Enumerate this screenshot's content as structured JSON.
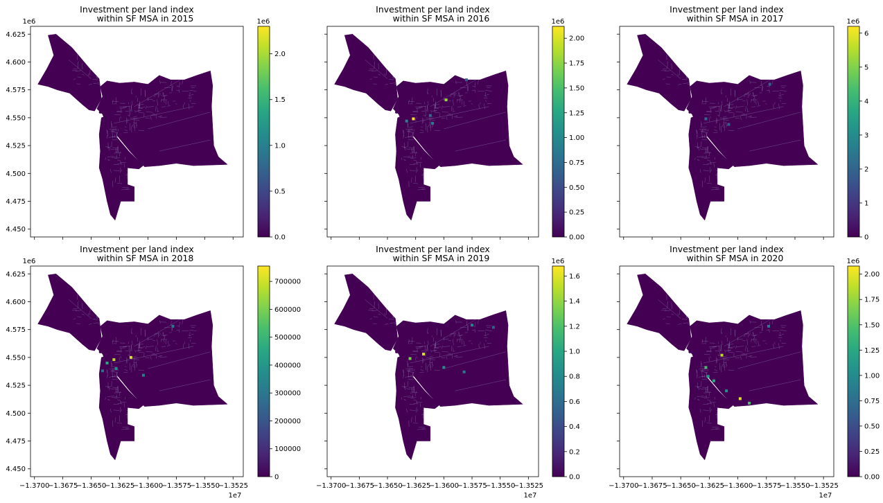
{
  "figure": {
    "colormap": "viridis",
    "region_fill_color": "#440154",
    "boundary_color": "#8f7fb0"
  },
  "chart_data": [
    {
      "type": "choropleth",
      "title_line1": "Investment per land index",
      "title_line2": "within SF MSA in 2015",
      "x_ticks": [],
      "x_exponent": "",
      "y_ticks": [
        "4.450",
        "4.475",
        "4.500",
        "4.525",
        "4.550",
        "4.575",
        "4.600",
        "4.625"
      ],
      "y_exponent": "1e6",
      "colorbar": {
        "min": 0,
        "max": 2300000,
        "ticks": [
          "0.0",
          "0.5",
          "1.0",
          "1.5",
          "2.0"
        ],
        "tick_values": [
          0,
          0.5,
          1.0,
          1.5,
          2.0
        ],
        "vmax_scaled": 2.3,
        "exponent": "1e6"
      },
      "hotspots": []
    },
    {
      "type": "choropleth",
      "title_line1": "Investment per land index",
      "title_line2": "within SF MSA in 2016",
      "x_ticks": [],
      "x_exponent": "",
      "y_ticks": [],
      "y_exponent": "",
      "colorbar": {
        "min": 0,
        "max": 2120000,
        "ticks": [
          "0.00",
          "0.25",
          "0.50",
          "0.75",
          "1.00",
          "1.25",
          "1.50",
          "1.75",
          "2.00"
        ],
        "tick_values": [
          0,
          0.25,
          0.5,
          0.75,
          1.0,
          1.25,
          1.5,
          1.75,
          2.0
        ],
        "vmax_scaled": 2.12,
        "exponent": "1e6"
      },
      "hotspots": [
        {
          "x": -13627000,
          "y": 4549000,
          "v": 1.0
        },
        {
          "x": -13633000,
          "y": 4547000,
          "v": 0.45
        },
        {
          "x": -13610000,
          "y": 4545000,
          "v": 0.4
        },
        {
          "x": -13598000,
          "y": 4566000,
          "v": 0.85
        },
        {
          "x": -13580000,
          "y": 4584000,
          "v": 0.3
        },
        {
          "x": -13612000,
          "y": 4552000,
          "v": 0.35
        }
      ]
    },
    {
      "type": "choropleth",
      "title_line1": "Investment per land index",
      "title_line2": "within SF MSA in 2017",
      "x_ticks": [],
      "x_exponent": "",
      "y_ticks": [],
      "y_exponent": "",
      "colorbar": {
        "min": 0,
        "max": 6200000,
        "ticks": [
          "0",
          "1",
          "2",
          "3",
          "4",
          "5",
          "6"
        ],
        "tick_values": [
          0,
          1,
          2,
          3,
          4,
          5,
          6
        ],
        "vmax_scaled": 6.2,
        "exponent": "1e6"
      },
      "hotspots": [
        {
          "x": -13628000,
          "y": 4549000,
          "v": 0.35
        },
        {
          "x": -13608000,
          "y": 4544000,
          "v": 0.3
        },
        {
          "x": -13572000,
          "y": 4580000,
          "v": 0.3
        }
      ]
    },
    {
      "type": "choropleth",
      "title_line1": "Investment per land index",
      "title_line2": "within SF MSA in 2018",
      "x_ticks": [
        "−1.3700",
        "−1.3675",
        "−1.3650",
        "−1.3625",
        "−1.3600",
        "−1.3575",
        "−1.3550",
        "−1.3525"
      ],
      "x_exponent": "1e7",
      "y_ticks": [
        "4.450",
        "4.475",
        "4.500",
        "4.525",
        "4.550",
        "4.575",
        "4.600",
        "4.625"
      ],
      "y_exponent": "1e6",
      "colorbar": {
        "min": 0,
        "max": 755000,
        "ticks": [
          "0",
          "100000",
          "200000",
          "300000",
          "400000",
          "500000",
          "600000",
          "700000"
        ],
        "tick_values": [
          0,
          100000,
          200000,
          300000,
          400000,
          500000,
          600000,
          700000
        ],
        "vmax_scaled": 755000,
        "exponent": ""
      },
      "hotspots": [
        {
          "x": -13630000,
          "y": 4548000,
          "v": 0.9
        },
        {
          "x": -13636000,
          "y": 4545000,
          "v": 0.6
        },
        {
          "x": -13628000,
          "y": 4540000,
          "v": 0.5
        },
        {
          "x": -13615000,
          "y": 4550000,
          "v": 0.95
        },
        {
          "x": -13604000,
          "y": 4534000,
          "v": 0.45
        },
        {
          "x": -13578000,
          "y": 4578000,
          "v": 0.4
        },
        {
          "x": -13640000,
          "y": 4538000,
          "v": 0.35
        }
      ]
    },
    {
      "type": "choropleth",
      "title_line1": "Investment per land index",
      "title_line2": "within SF MSA in 2019",
      "x_ticks": [
        "−1.3700",
        "−1.3675",
        "−1.3650",
        "−1.3625",
        "−1.3600",
        "−1.3575",
        "−1.3550",
        "−1.3525"
      ],
      "x_exponent": "1e7",
      "y_ticks": [],
      "y_exponent": "",
      "colorbar": {
        "min": 0,
        "max": 1680000,
        "ticks": [
          "0.0",
          "0.2",
          "0.4",
          "0.6",
          "0.8",
          "1.0",
          "1.2",
          "1.4",
          "1.6"
        ],
        "tick_values": [
          0,
          0.2,
          0.4,
          0.6,
          0.8,
          1.0,
          1.2,
          1.4,
          1.6
        ],
        "vmax_scaled": 1.68,
        "exponent": "1e6"
      },
      "hotspots": [
        {
          "x": -13630000,
          "y": 4549000,
          "v": 0.8
        },
        {
          "x": -13618000,
          "y": 4553000,
          "v": 0.95
        },
        {
          "x": -13600000,
          "y": 4541000,
          "v": 0.5
        },
        {
          "x": -13582000,
          "y": 4537000,
          "v": 0.4
        },
        {
          "x": -13575000,
          "y": 4579000,
          "v": 0.45
        },
        {
          "x": -13556000,
          "y": 4577000,
          "v": 0.3
        }
      ]
    },
    {
      "type": "choropleth",
      "title_line1": "Investment per land index",
      "title_line2": "within SF MSA in 2020",
      "x_ticks": [
        "−1.3700",
        "−1.3675",
        "−1.3650",
        "−1.3625",
        "−1.3600",
        "−1.3575",
        "−1.3550",
        "−1.3525"
      ],
      "x_exponent": "1e7",
      "y_ticks": [],
      "y_exponent": "",
      "colorbar": {
        "min": 0,
        "max": 2080000,
        "ticks": [
          "0.00",
          "0.25",
          "0.50",
          "0.75",
          "1.00",
          "1.25",
          "1.50",
          "1.75",
          "2.00"
        ],
        "tick_values": [
          0,
          0.25,
          0.5,
          0.75,
          1.0,
          1.25,
          1.5,
          1.75,
          2.0
        ],
        "vmax_scaled": 2.08,
        "exponent": "1e6"
      },
      "hotspots": [
        {
          "x": -13614000,
          "y": 4552000,
          "v": 0.9
        },
        {
          "x": -13628000,
          "y": 4541000,
          "v": 0.7
        },
        {
          "x": -13621000,
          "y": 4529000,
          "v": 0.6
        },
        {
          "x": -13610000,
          "y": 4520000,
          "v": 0.5
        },
        {
          "x": -13598000,
          "y": 4513000,
          "v": 0.95
        },
        {
          "x": -13590000,
          "y": 4509000,
          "v": 0.7
        },
        {
          "x": -13573000,
          "y": 4578000,
          "v": 0.4
        },
        {
          "x": -13626000,
          "y": 4533000,
          "v": 0.55
        }
      ]
    }
  ]
}
